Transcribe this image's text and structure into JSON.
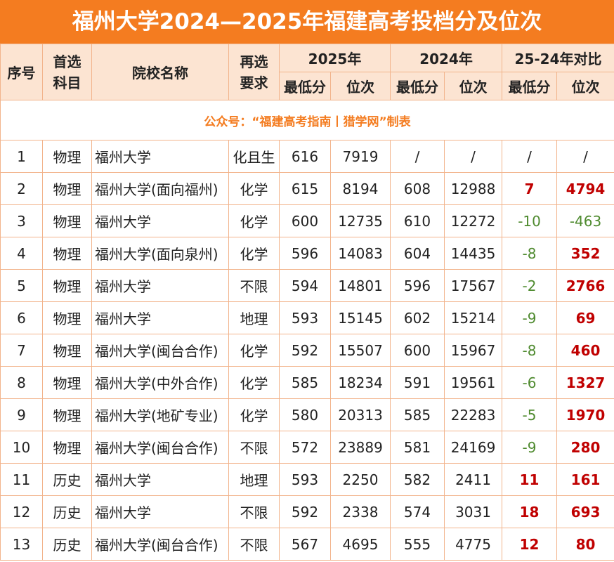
{
  "header": {
    "title": "福州大学2024—2025年福建高考投档分及位次",
    "source": "公众号：“福建高考指南丨猎学网”制表"
  },
  "table": {
    "columns": [
      "序号",
      "首选科目",
      "院校名称",
      "再选要求",
      "2025年",
      "2024年",
      "25-24年对比"
    ],
    "subcolumns": [
      "最低分",
      "位次",
      "最低分",
      "位次",
      "最低分",
      "位次"
    ],
    "rows": [
      [
        1,
        "物理",
        "福州大学",
        "化且生",
        616,
        7919,
        "/",
        "/",
        "/",
        "/"
      ],
      [
        2,
        "物理",
        "福州大学(面向福州)",
        "化学",
        615,
        8194,
        608,
        12988,
        7,
        4794
      ],
      [
        3,
        "物理",
        "福州大学",
        "化学",
        600,
        12735,
        610,
        12272,
        -10,
        -463
      ],
      [
        4,
        "物理",
        "福州大学(面向泉州)",
        "化学",
        596,
        14083,
        604,
        14435,
        -8,
        352
      ],
      [
        5,
        "物理",
        "福州大学",
        "不限",
        594,
        14801,
        596,
        17567,
        -2,
        2766
      ],
      [
        6,
        "物理",
        "福州大学",
        "地理",
        593,
        15145,
        602,
        15214,
        -9,
        69
      ],
      [
        7,
        "物理",
        "福州大学(闽台合作)",
        "化学",
        592,
        15507,
        600,
        15967,
        -8,
        460
      ],
      [
        8,
        "物理",
        "福州大学(中外合作)",
        "化学",
        585,
        18234,
        591,
        19561,
        -6,
        1327
      ],
      [
        9,
        "物理",
        "福州大学(地矿专业)",
        "化学",
        580,
        20313,
        585,
        22283,
        -5,
        1970
      ],
      [
        10,
        "物理",
        "福州大学(闽台合作)",
        "不限",
        572,
        23889,
        581,
        24169,
        -9,
        280
      ],
      [
        11,
        "历史",
        "福州大学",
        "地理",
        593,
        2250,
        582,
        2411,
        11,
        161
      ],
      [
        12,
        "历史",
        "福州大学",
        "不限",
        592,
        2338,
        574,
        3031,
        18,
        693
      ],
      [
        13,
        "历史",
        "福州大学(闽台合作)",
        "不限",
        567,
        4695,
        555,
        4775,
        12,
        80
      ]
    ]
  }
}
